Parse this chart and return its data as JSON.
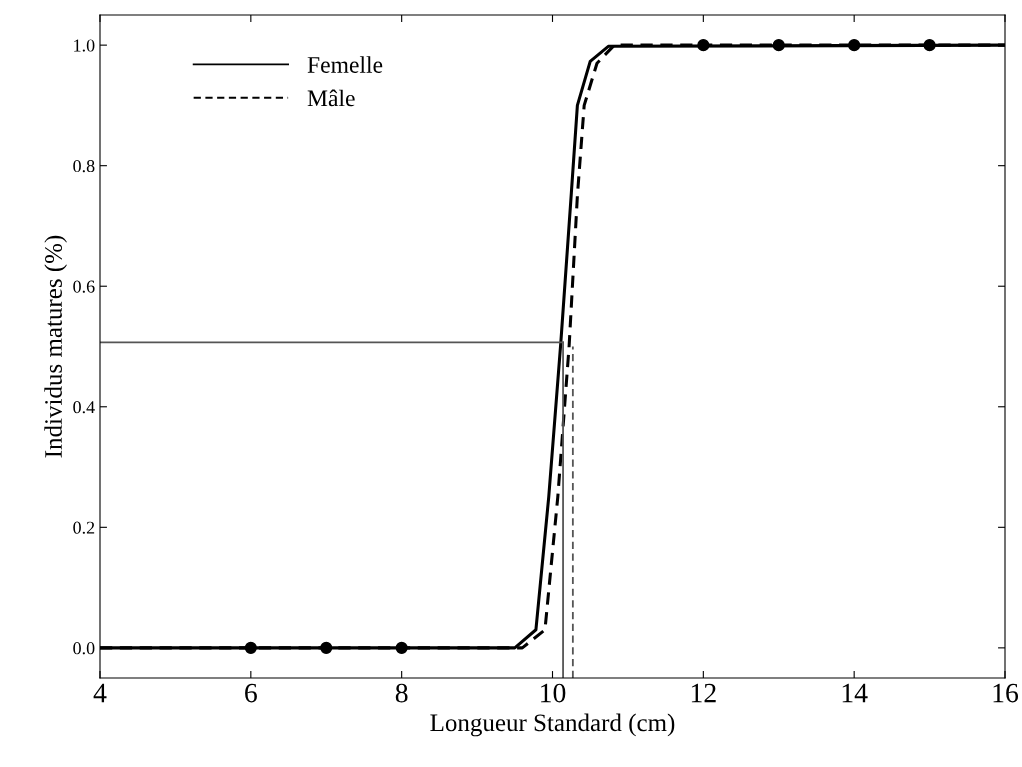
{
  "chart_data": {
    "type": "line",
    "xlabel": "Longueur Standard (cm)",
    "ylabel": "Individus matures (%)",
    "xlim": [
      4,
      16
    ],
    "xticks": [
      4,
      6,
      8,
      10,
      12,
      14,
      16
    ],
    "ylim": [
      -0.05,
      1.05
    ],
    "yticks": [
      {
        "value": 0,
        "label": "0.0"
      },
      {
        "value": 0.2,
        "label": "0.2"
      },
      {
        "value": 0.4,
        "label": "0.4"
      },
      {
        "value": 0.6,
        "label": "0.6"
      },
      {
        "value": 0.8,
        "label": "0.8"
      },
      {
        "value": 1,
        "label": "1.0"
      }
    ],
    "grid": false,
    "legend": "top left",
    "series": [
      {
        "name": "Femelle",
        "color": "#000000",
        "line_style": "solid",
        "x": [
          4,
          9.5,
          9.78,
          9.95,
          10.11,
          10.25,
          10.33,
          10.5,
          10.74,
          16
        ],
        "values": [
          0,
          0,
          0.03,
          0.25,
          0.506,
          0.755,
          0.9,
          0.973,
          0.998,
          1
        ]
      },
      {
        "name": "Mâle",
        "color": "#000000",
        "line_style": "dashed",
        "x": [
          4,
          9.6,
          9.9,
          10.07,
          10.22,
          10.33,
          10.42,
          10.59,
          10.82,
          16
        ],
        "values": [
          0,
          0,
          0.03,
          0.25,
          0.5,
          0.75,
          0.9,
          0.97,
          1.0,
          1
        ]
      },
      {
        "type": "line",
        "color": "#555555",
        "line_style": "solid",
        "x": [
          4,
          10.14
        ],
        "values": [
          0.507,
          0.507
        ]
      },
      {
        "type": "line",
        "color": "#555555",
        "line_style": "solid",
        "x": [
          10.14,
          10.14
        ],
        "values": [
          -0.05,
          0.507
        ]
      },
      {
        "type": "line",
        "color": "#555555",
        "line_style": "dashed",
        "x": [
          10.27,
          10.27
        ],
        "values": [
          -0.05,
          0.5
        ]
      },
      {
        "type": "scatter",
        "color": "#000000",
        "marker": "circle",
        "x": [
          6,
          7,
          8,
          12,
          13,
          14,
          15
        ],
        "values": [
          0,
          0,
          0,
          1,
          1,
          1,
          1
        ]
      }
    ]
  }
}
